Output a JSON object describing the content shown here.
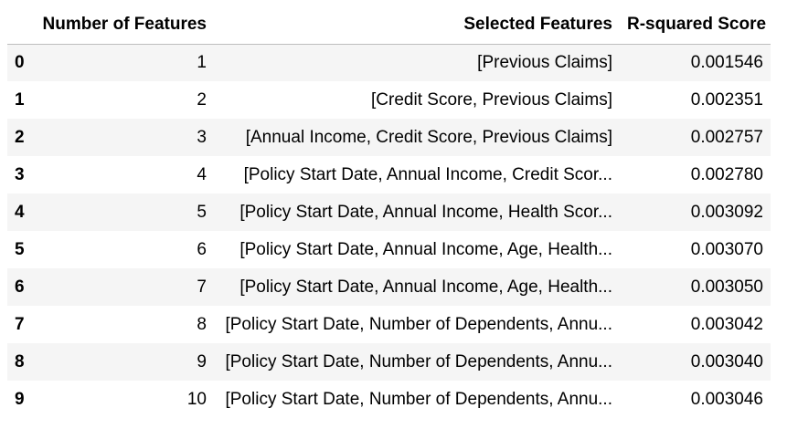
{
  "table": {
    "columns": {
      "index": "",
      "num_features": "Number of Features",
      "selected_features": "Selected Features",
      "r2": "R-squared Score"
    },
    "rows": [
      {
        "index": "0",
        "num_features": "1",
        "selected_features": "[Previous Claims]",
        "r2": "0.001546"
      },
      {
        "index": "1",
        "num_features": "2",
        "selected_features": "[Credit Score, Previous Claims]",
        "r2": "0.002351"
      },
      {
        "index": "2",
        "num_features": "3",
        "selected_features": "[Annual Income, Credit Score, Previous Claims]",
        "r2": "0.002757"
      },
      {
        "index": "3",
        "num_features": "4",
        "selected_features": "[Policy Start Date, Annual Income, Credit Scor...",
        "r2": "0.002780"
      },
      {
        "index": "4",
        "num_features": "5",
        "selected_features": "[Policy Start Date, Annual Income, Health Scor...",
        "r2": "0.003092"
      },
      {
        "index": "5",
        "num_features": "6",
        "selected_features": "[Policy Start Date, Annual Income, Age, Health...",
        "r2": "0.003070"
      },
      {
        "index": "6",
        "num_features": "7",
        "selected_features": "[Policy Start Date, Annual Income, Age, Health...",
        "r2": "0.003050"
      },
      {
        "index": "7",
        "num_features": "8",
        "selected_features": "[Policy Start Date, Number of Dependents, Annu...",
        "r2": "0.003042"
      },
      {
        "index": "8",
        "num_features": "9",
        "selected_features": "[Policy Start Date, Number of Dependents, Annu...",
        "r2": "0.003040"
      },
      {
        "index": "9",
        "num_features": "10",
        "selected_features": "[Policy Start Date, Number of Dependents, Annu...",
        "r2": "0.003046"
      }
    ]
  },
  "colors": {
    "stripe": "#f5f5f5",
    "header_rule": "#bdbdbd",
    "text": "#000000"
  }
}
